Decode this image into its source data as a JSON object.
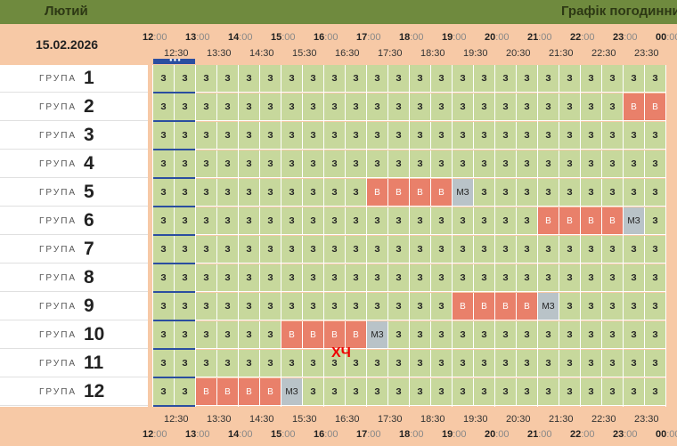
{
  "header": {
    "month": "Лютий",
    "title": "Графік погодинни"
  },
  "date": "15.02.2026",
  "hours": [
    "12",
    "13",
    "14",
    "15",
    "16",
    "17",
    "18",
    "19",
    "20",
    "21",
    "22",
    "23",
    "00"
  ],
  "minutes": ":00",
  "half_hours": [
    "12:30",
    "13:30",
    "14:30",
    "15:30",
    "16:30",
    "17:30",
    "18:30",
    "19:30",
    "20:30",
    "21:30",
    "22:30",
    "23:30"
  ],
  "row_word": "ГРУПА",
  "groups": [
    {
      "num": "1",
      "cells": "zzzzzzzzzzzzzzzzzzzzzzzz"
    },
    {
      "num": "2",
      "cells": "zzzzzzzzzzzzzzzzzzzzzzvv"
    },
    {
      "num": "3",
      "cells": "zzzzzzzzzzzzzzzzzzzzzzzz"
    },
    {
      "num": "4",
      "cells": "zzzzzzzzzzzzzzzzzzzzzzzz"
    },
    {
      "num": "5",
      "cells": "zzzzzzzzzzvvvvmzzzzzzzzz"
    },
    {
      "num": "6",
      "cells": "zzzzzzzzzzzzzzzzzzvvvvmz"
    },
    {
      "num": "7",
      "cells": "zzzzzzzzzzzzzzzzzzzzzzzz"
    },
    {
      "num": "8",
      "cells": "zzzzzzzzzzzzzzzzzzzzzzzz"
    },
    {
      "num": "9",
      "cells": "zzzzzzzzzzzzzzvvvvmzzzzz"
    },
    {
      "num": "10",
      "cells": "zzzzzzvvvvmzzzzzzzzzzzzz"
    },
    {
      "num": "11",
      "cells": "zzzzzzzzzzzzzzzzzzzzzzzz"
    },
    {
      "num": "12",
      "cells": "zzvvvvmzzzzzzzzzzzzzzzzz"
    }
  ],
  "cell_labels": {
    "z": "З",
    "v": "В",
    "m": "МЗ"
  },
  "annotation": "ХЧ",
  "colors": {
    "on": "#c7d89c",
    "off": "#e9806a",
    "maybe": "#b9c3c8",
    "header": "#6f8a3e"
  }
}
